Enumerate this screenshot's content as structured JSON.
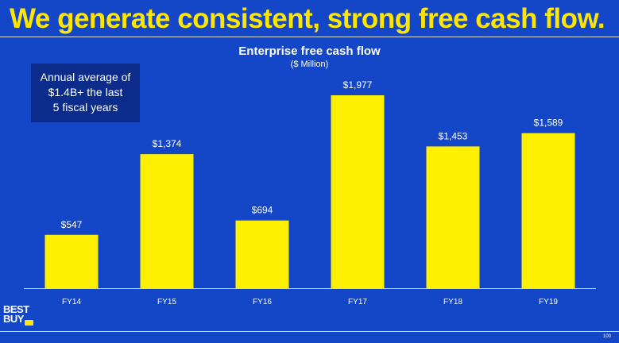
{
  "slide": {
    "title": "We generate consistent, strong free cash flow.",
    "page_number": "100"
  },
  "callout": {
    "lines": [
      "Annual average of",
      "$1.4B+ the last",
      "5 fiscal years"
    ]
  },
  "logo": {
    "lines": [
      "BEST",
      "BUY"
    ],
    "tag_color": "#ffe600"
  },
  "colors": {
    "background": "#1446c8",
    "bar": "#ffef00",
    "title": "#ffe600",
    "callout_bg": "#0b2c8a",
    "text": "#ffffff"
  },
  "chart_data": {
    "type": "bar",
    "title": "Enterprise free cash flow",
    "subtitle": "($ Million)",
    "categories": [
      "FY14",
      "FY15",
      "FY16",
      "FY17",
      "FY18",
      "FY19"
    ],
    "values": [
      547,
      1374,
      694,
      1977,
      1453,
      1589
    ],
    "value_labels": [
      "$547",
      "$1,374",
      "$694",
      "$1,977",
      "$1,453",
      "$1,589"
    ],
    "ylim": [
      0,
      2000
    ],
    "grid": false,
    "legend": "none"
  }
}
